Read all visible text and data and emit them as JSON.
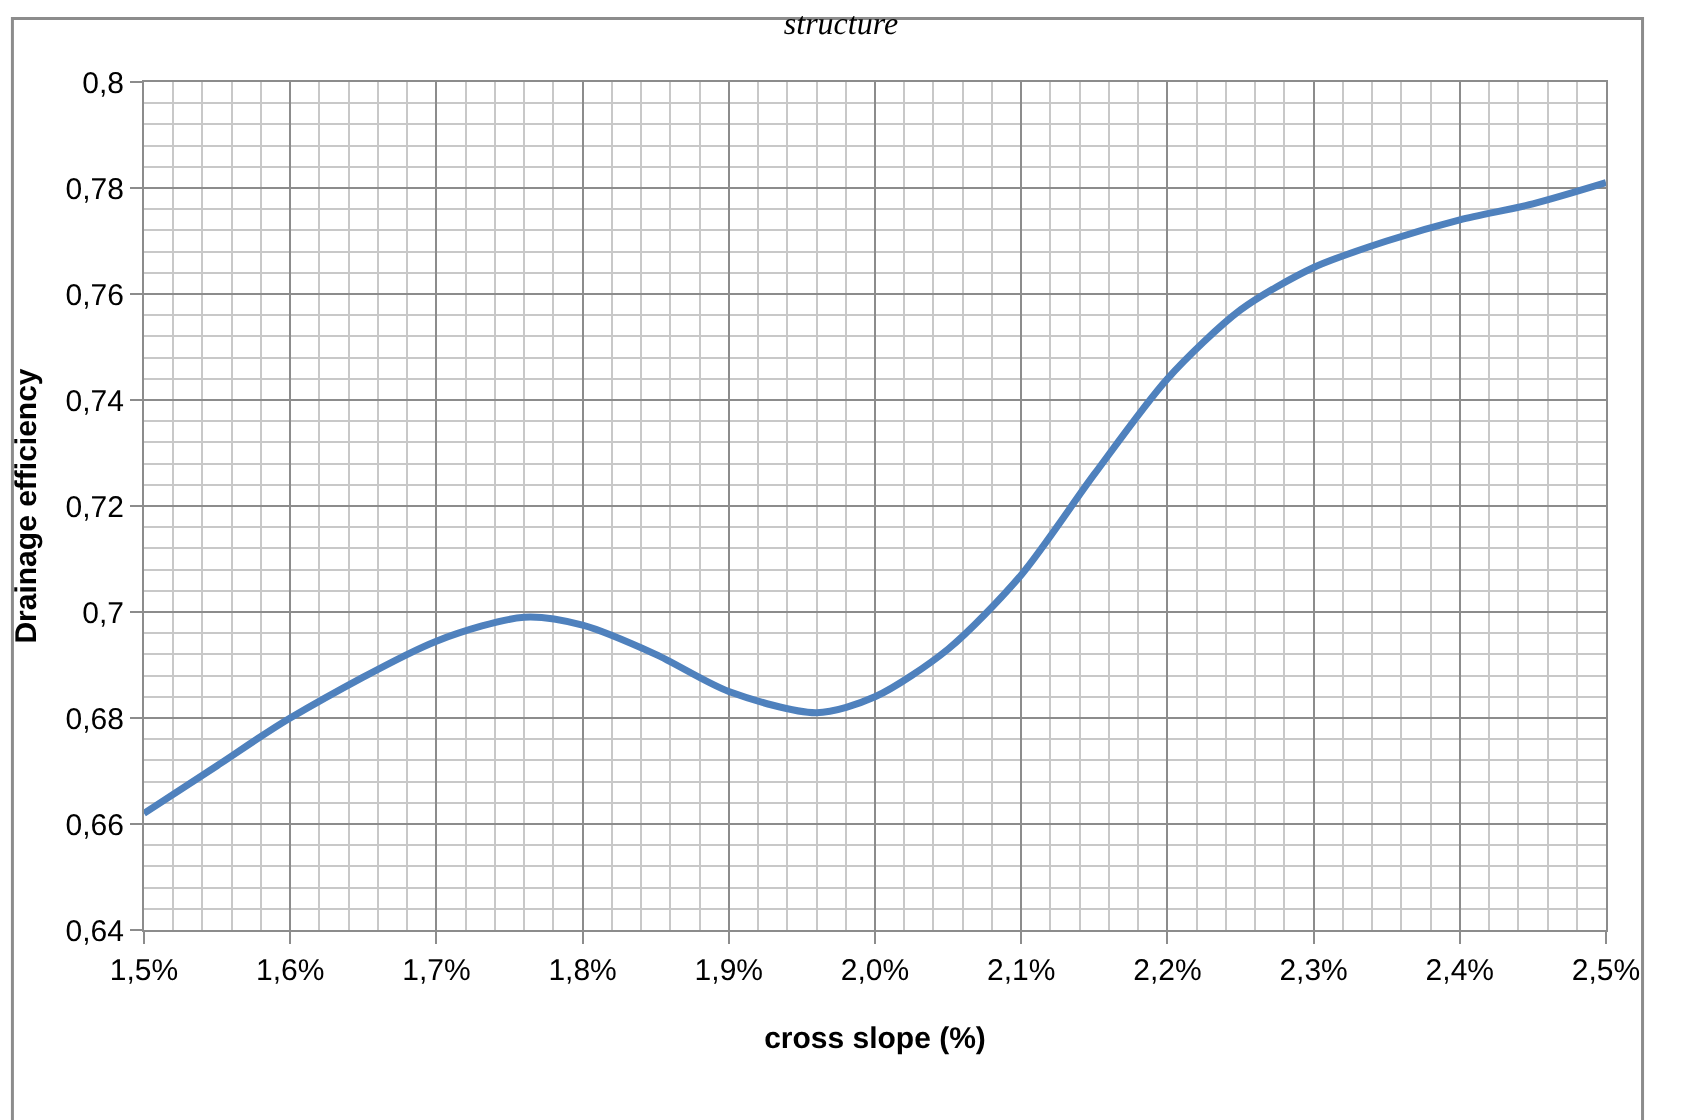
{
  "chart_data": {
    "type": "line",
    "title": "structure",
    "xlabel": "cross slope (%)",
    "ylabel": "Drainage efficiency",
    "x": [
      1.5,
      1.55,
      1.6,
      1.7,
      1.76,
      1.8,
      1.85,
      1.9,
      1.96,
      2.0,
      2.05,
      2.1,
      2.15,
      2.2,
      2.25,
      2.3,
      2.35,
      2.4,
      2.45,
      2.5
    ],
    "series": [
      {
        "color": "#4f81bd",
        "values": [
          0.662,
          0.671,
          0.68,
          0.6945,
          0.699,
          0.6975,
          0.692,
          0.685,
          0.681,
          0.684,
          0.693,
          0.707,
          0.726,
          0.744,
          0.757,
          0.765,
          0.77,
          0.774,
          0.777,
          0.781
        ]
      }
    ],
    "xlim": [
      1.5,
      2.5
    ],
    "ylim": [
      0.64,
      0.8
    ],
    "xticks": [
      {
        "value": 1.5,
        "label": "1,5%"
      },
      {
        "value": 1.6,
        "label": "1,6%"
      },
      {
        "value": 1.7,
        "label": "1,7%"
      },
      {
        "value": 1.8,
        "label": "1,8%"
      },
      {
        "value": 1.9,
        "label": "1,9%"
      },
      {
        "value": 2.0,
        "label": "2,0%"
      },
      {
        "value": 2.1,
        "label": "2,1%"
      },
      {
        "value": 2.2,
        "label": "2,2%"
      },
      {
        "value": 2.3,
        "label": "2,3%"
      },
      {
        "value": 2.4,
        "label": "2,4%"
      },
      {
        "value": 2.5,
        "label": "2,5%"
      }
    ],
    "yticks": [
      {
        "value": 0.64,
        "label": "0,64"
      },
      {
        "value": 0.66,
        "label": "0,66"
      },
      {
        "value": 0.68,
        "label": "0,68"
      },
      {
        "value": 0.7,
        "label": "0,7"
      },
      {
        "value": 0.72,
        "label": "0,72"
      },
      {
        "value": 0.74,
        "label": "0,74"
      },
      {
        "value": 0.76,
        "label": "0,76"
      },
      {
        "value": 0.78,
        "label": "0,78"
      },
      {
        "value": 0.8,
        "label": "0,8"
      }
    ],
    "grid": true,
    "marker": "none",
    "line_style": "solid"
  }
}
